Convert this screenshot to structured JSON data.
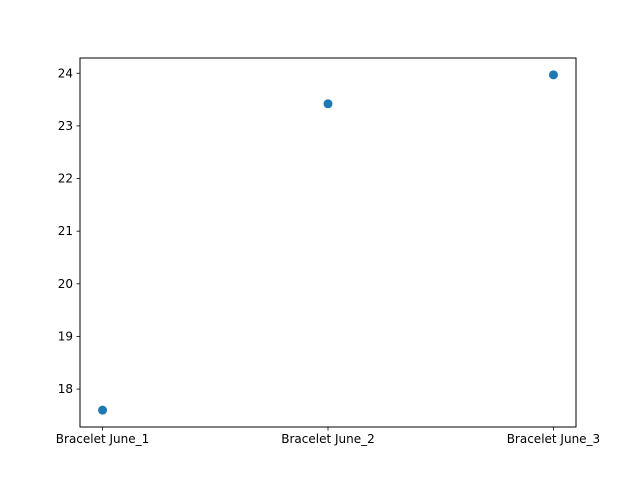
{
  "chart_data": {
    "type": "scatter",
    "title": "",
    "xlabel": "",
    "ylabel": "",
    "categories": [
      "Bracelet June_1",
      "Bracelet June_2",
      "Bracelet June_3"
    ],
    "values": [
      17.6,
      23.42,
      23.97
    ],
    "ylim": [
      17.28,
      24.29
    ],
    "yticks": [
      18,
      19,
      20,
      21,
      22,
      23,
      24
    ],
    "grid": false,
    "legend": "none",
    "marker_color": "#1f77b4"
  }
}
